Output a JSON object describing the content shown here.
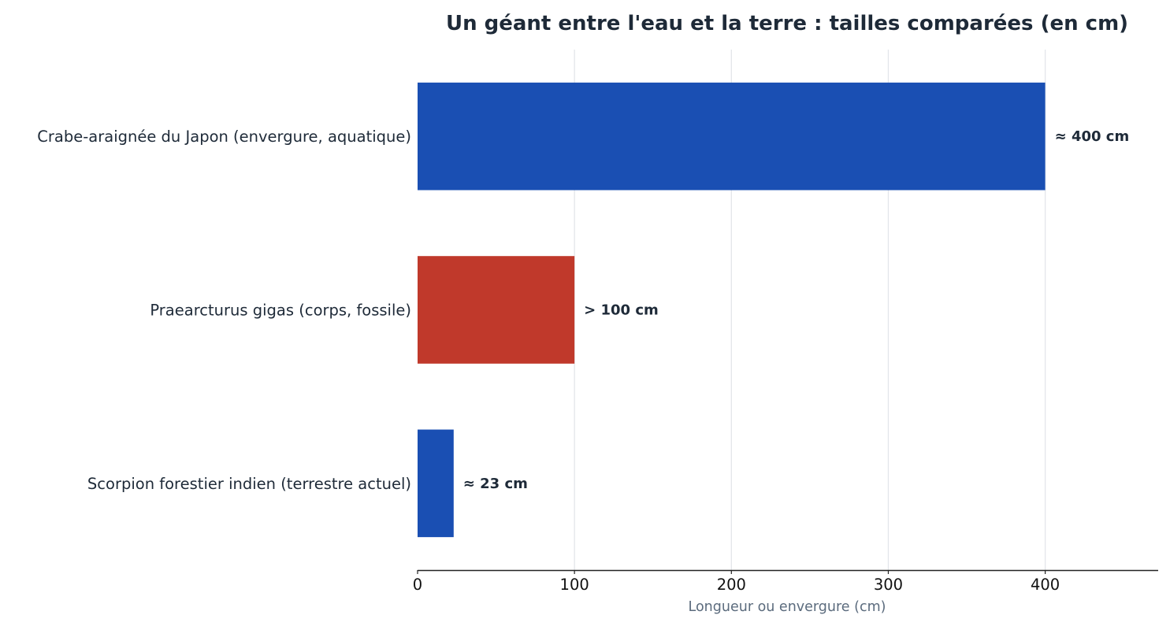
{
  "chart_data": {
    "type": "bar",
    "orientation": "horizontal",
    "title": "Un géant entre l'eau et la terre : tailles comparées (en cm)",
    "xlabel": "Longueur ou envergure (cm)",
    "ylabel": "",
    "xlim": [
      0,
      472
    ],
    "xticks": [
      0,
      100,
      200,
      300,
      400
    ],
    "grid": "vertical",
    "categories": [
      "Crabe-araignée du Japon (envergure, aquatique)",
      "Praearcturus gigas (corps, fossile)",
      "Scorpion forestier indien (terrestre actuel)"
    ],
    "values": [
      400,
      100,
      23
    ],
    "data_labels": [
      "≈ 400 cm",
      "> 100 cm",
      "≈ 23 cm"
    ],
    "colors": [
      "#1a4fb3",
      "#c0392b",
      "#1a4fb3"
    ]
  }
}
